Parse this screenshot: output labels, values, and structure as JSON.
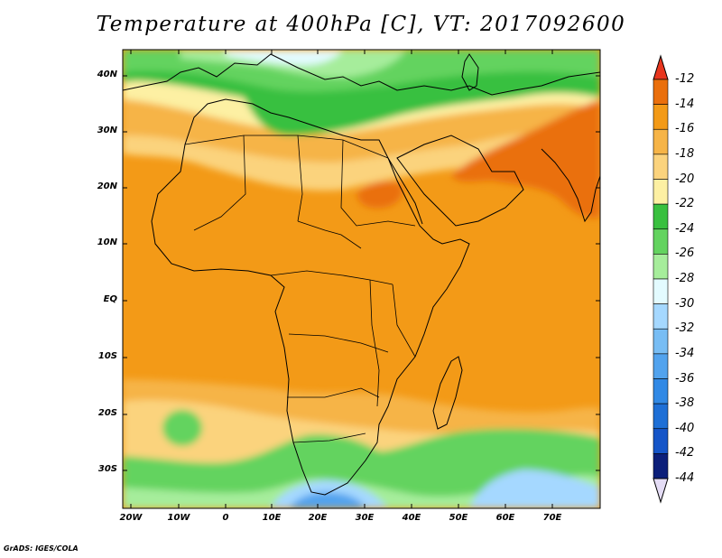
{
  "title": "Temperature at 400hPa [C], VT: 2017092600",
  "credit": "GrADS: IGES/COLA",
  "lat_labels": [
    "40N",
    "30N",
    "20N",
    "10N",
    "EQ",
    "10S",
    "20S",
    "30S"
  ],
  "lon_labels": [
    "20W",
    "10W",
    "0",
    "10E",
    "20E",
    "30E",
    "40E",
    "50E",
    "60E",
    "70E"
  ],
  "colorbar": {
    "labels": [
      "-12",
      "-14",
      "-16",
      "-18",
      "-20",
      "-22",
      "-24",
      "-26",
      "-28",
      "-30",
      "-32",
      "-34",
      "-36",
      "-38",
      "-40",
      "-42",
      "-44"
    ],
    "colors": [
      "#e8361e",
      "#ea6f0c",
      "#f39a17",
      "#f6b447",
      "#fbd37d",
      "#fdf0a3",
      "#39c03f",
      "#63d35f",
      "#a6ed9b",
      "#e3fbff",
      "#a5d8ff",
      "#78bdf4",
      "#52a3ee",
      "#3189e5",
      "#1e6fd6",
      "#1555c8",
      "#0c1f7a"
    ],
    "top_arrow_color": "#e8361e",
    "bottom_arrow_color": "#e4dcf5"
  },
  "map_colors": {
    "orange": "#f39a17",
    "light_orange": "#f6b447",
    "yellow": "#fbd37d",
    "pale_yellow": "#fdf0a3",
    "green": "#39c03f",
    "mid_green": "#63d35f",
    "light_green": "#a6ed9b",
    "red_orange": "#ea6f0c",
    "cyan_white": "#e3fbff",
    "light_blue": "#a5d8ff",
    "blue": "#52a3ee"
  }
}
